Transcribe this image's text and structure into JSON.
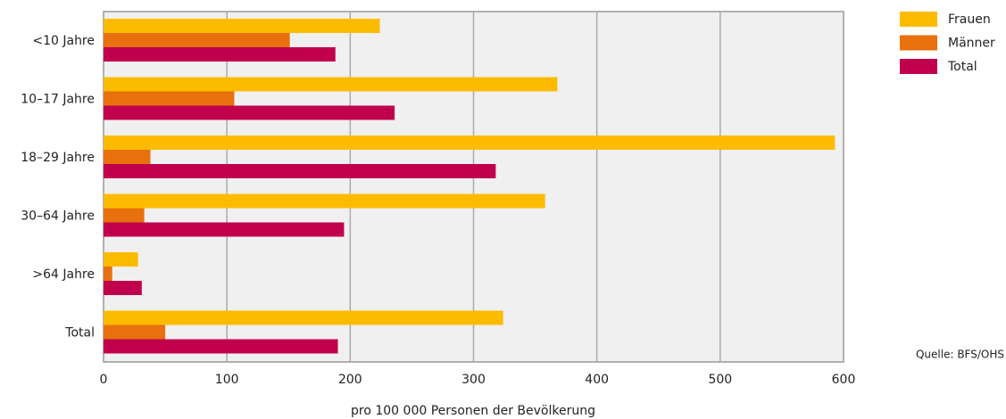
{
  "chart_data": {
    "type": "bar",
    "orientation": "horizontal",
    "categories": [
      "<10 Jahre",
      "10–17 Jahre",
      "18–29 Jahre",
      "30–64 Jahre",
      ">64 Jahre",
      "Total"
    ],
    "series": [
      {
        "name": "Frauen",
        "color": "#fdbb00",
        "values": [
          224,
          368,
          593,
          358,
          28,
          324
        ]
      },
      {
        "name": "Männer",
        "color": "#e8700d",
        "values": [
          151,
          106,
          38,
          33,
          7,
          50
        ]
      },
      {
        "name": "Total",
        "color": "#c0004d",
        "values": [
          188,
          236,
          318,
          195,
          31,
          190
        ]
      }
    ],
    "xlabel": "pro 100 000 Personen der Bevölkerung",
    "xlim": [
      0,
      600
    ],
    "xticks": [
      0,
      100,
      200,
      300,
      400,
      500,
      600
    ],
    "grid": true,
    "legend": "right",
    "source": "Quelle: BFS/OHS"
  }
}
